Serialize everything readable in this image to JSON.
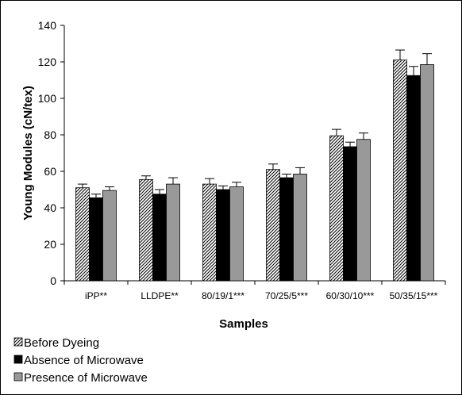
{
  "chart_data": {
    "type": "bar",
    "title": "",
    "xlabel": "Samples",
    "ylabel": "Young Modules  (cN/tex)",
    "ylim": [
      0,
      140
    ],
    "yticks": [
      0,
      20,
      40,
      60,
      80,
      100,
      120,
      140
    ],
    "grid": false,
    "legend_position": "bottom-left",
    "categories": [
      "iPP**",
      "LLDPE**",
      "80/19/1***",
      "70/25/5***",
      "60/30/10***",
      "50/35/15***"
    ],
    "series": [
      {
        "name": "Before Dyeing",
        "pattern": "diagonal-hatch",
        "color": "#000000",
        "values": [
          51,
          55.5,
          53,
          61,
          79.5,
          121
        ],
        "errors": [
          2,
          2,
          3,
          3,
          3.5,
          5.5
        ]
      },
      {
        "name": "Absence of Microwave",
        "pattern": "solid",
        "color": "#000000",
        "values": [
          45.5,
          47.5,
          50,
          56.5,
          73.5,
          112.5
        ],
        "errors": [
          2,
          2.5,
          2,
          2,
          2.5,
          5
        ]
      },
      {
        "name": "Presence  of Microwave",
        "pattern": "solid",
        "color": "#999999",
        "values": [
          49.5,
          53,
          51.5,
          58.5,
          77.5,
          118.5
        ],
        "errors": [
          2,
          3.5,
          2.5,
          3.5,
          3.5,
          6
        ]
      }
    ]
  }
}
